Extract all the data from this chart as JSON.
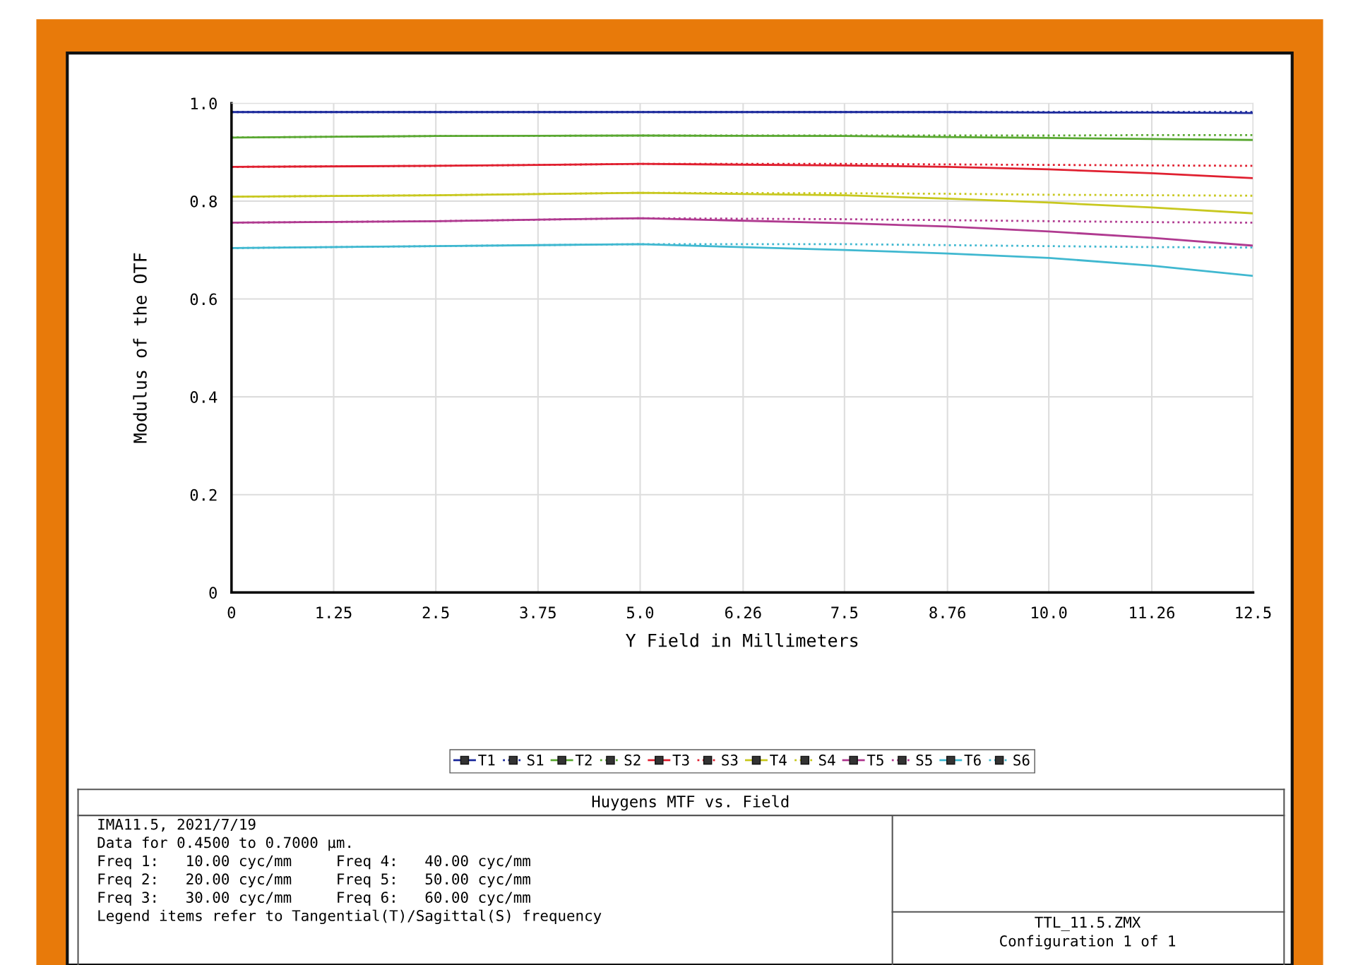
{
  "chart_data": {
    "type": "line",
    "title": "Huygens MTF vs. Field",
    "xlabel": "Y Field in Millimeters",
    "ylabel": "Modulus of the OTF",
    "x": [
      0,
      2.5,
      5,
      7.5,
      8.76,
      10,
      11.26,
      12.5
    ],
    "xlim": [
      0,
      12.5
    ],
    "xticks": [
      0,
      1.25,
      2.5,
      3.75,
      {
        "value": 5,
        "label": "5.0"
      },
      6.26,
      7.5,
      8.76,
      {
        "value": 10,
        "label": "10.0"
      },
      11.26,
      12.5
    ],
    "ylim": [
      0,
      1
    ],
    "yticks": [
      0,
      0.2,
      0.4,
      0.6,
      0.8,
      {
        "value": 1,
        "label": "1.0"
      }
    ],
    "grid": true,
    "legend": "bottom",
    "series": [
      {
        "name": "T1",
        "color": "#1c2a9c",
        "line_style": "solid",
        "values": [
          0.982,
          0.982,
          0.982,
          0.982,
          0.982,
          0.981,
          0.981,
          0.98
        ]
      },
      {
        "name": "S1",
        "color": "#1c2a9c",
        "line_style": "dotted",
        "values": [
          0.982,
          0.982,
          0.982,
          0.982,
          0.982,
          0.982,
          0.982,
          0.982
        ]
      },
      {
        "name": "T2",
        "color": "#5aa832",
        "line_style": "solid",
        "values": [
          0.93,
          0.933,
          0.934,
          0.933,
          0.931,
          0.929,
          0.927,
          0.925
        ]
      },
      {
        "name": "S2",
        "color": "#5aa832",
        "line_style": "dotted",
        "values": [
          0.93,
          0.933,
          0.934,
          0.934,
          0.934,
          0.934,
          0.935,
          0.935
        ]
      },
      {
        "name": "T3",
        "color": "#e02030",
        "line_style": "solid",
        "values": [
          0.87,
          0.872,
          0.876,
          0.873,
          0.87,
          0.865,
          0.857,
          0.847
        ]
      },
      {
        "name": "S3",
        "color": "#e02030",
        "line_style": "dotted",
        "values": [
          0.87,
          0.872,
          0.876,
          0.876,
          0.875,
          0.874,
          0.873,
          0.872
        ]
      },
      {
        "name": "T4",
        "color": "#c8c820",
        "line_style": "solid",
        "values": [
          0.809,
          0.812,
          0.817,
          0.812,
          0.805,
          0.797,
          0.787,
          0.775
        ]
      },
      {
        "name": "S4",
        "color": "#c8c820",
        "line_style": "dotted",
        "values": [
          0.809,
          0.812,
          0.817,
          0.816,
          0.815,
          0.813,
          0.812,
          0.811
        ]
      },
      {
        "name": "T5",
        "color": "#b03a90",
        "line_style": "solid",
        "values": [
          0.756,
          0.759,
          0.765,
          0.755,
          0.748,
          0.738,
          0.725,
          0.709
        ]
      },
      {
        "name": "S5",
        "color": "#b03a90",
        "line_style": "dotted",
        "values": [
          0.756,
          0.759,
          0.765,
          0.763,
          0.761,
          0.759,
          0.757,
          0.756
        ]
      },
      {
        "name": "T6",
        "color": "#40b8d0",
        "line_style": "solid",
        "values": [
          0.704,
          0.708,
          0.712,
          0.7,
          0.693,
          0.684,
          0.668,
          0.647
        ]
      },
      {
        "name": "S6",
        "color": "#40b8d0",
        "line_style": "dotted",
        "values": [
          0.704,
          0.708,
          0.712,
          0.712,
          0.71,
          0.708,
          0.706,
          0.705
        ]
      }
    ],
    "annotations": [
      "IMA11.5, 2021/7/19\nData for 0.4500 to 0.7000 µm.\nFreq 1:   10.00 cyc/mm     Freq 4:   40.00 cyc/mm\nFreq 2:   20.00 cyc/mm     Freq 5:   50.00 cyc/mm\nFreq 3:   30.00 cyc/mm     Freq 6:   60.00 cyc/mm\nLegend items refer to Tangential(T)/Sagittal(S) frequency",
      "TTL_11.5.ZMX\nConfiguration 1 of 1"
    ]
  }
}
